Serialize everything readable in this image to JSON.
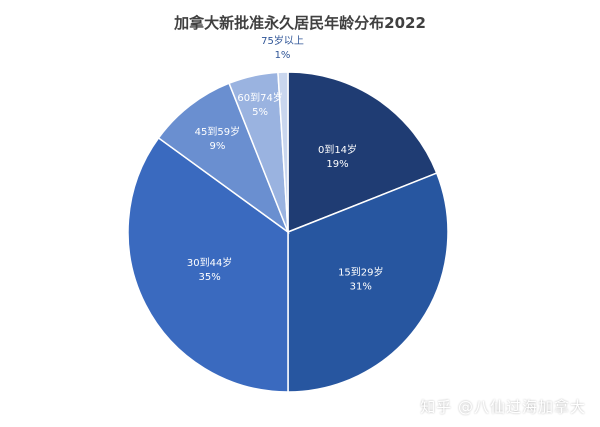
{
  "chart_data": {
    "type": "pie",
    "title": "加拿大新批准永久居民年龄分布2022",
    "slices": [
      {
        "category": "0到14岁",
        "value": 19,
        "percent_label": "19%",
        "color": "#1f3c73"
      },
      {
        "category": "15到29岁",
        "value": 31,
        "percent_label": "31%",
        "color": "#2756a0"
      },
      {
        "category": "30到44岁",
        "value": 35,
        "percent_label": "35%",
        "color": "#3a6abf"
      },
      {
        "category": "45到59岁",
        "value": 9,
        "percent_label": "9%",
        "color": "#6a8fd0"
      },
      {
        "category": "60到74岁",
        "value": 5,
        "percent_label": "5%",
        "color": "#9ab3e0"
      },
      {
        "category": "75岁以上",
        "value": 1,
        "percent_label": "1%",
        "color": "#c9d6ee"
      }
    ]
  },
  "watermark": "知乎 @八仙过海加拿大"
}
